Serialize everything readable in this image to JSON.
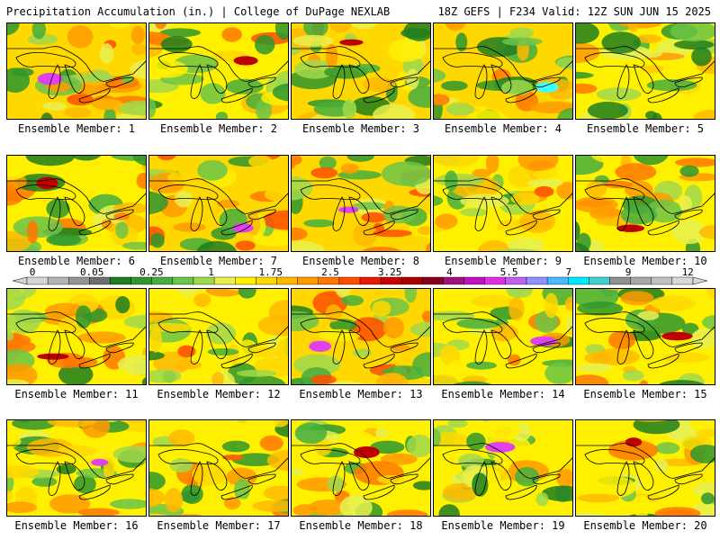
{
  "header": {
    "left": "Precipitation Accumulation (in.) | College of DuPage NEXLAB",
    "right": "18Z GEFS | F234 Valid: 12Z SUN JUN 15 2025"
  },
  "member_prefix": "Ensemble Member: ",
  "members": [
    {
      "n": 1,
      "text": "Ensemble Member: 1",
      "seed": 11,
      "level": 0.55,
      "peak": "magenta"
    },
    {
      "n": 2,
      "text": "Ensemble Member: 2",
      "seed": 22,
      "level": 0.45,
      "peak": "red"
    },
    {
      "n": 3,
      "text": "Ensemble Member: 3",
      "seed": 33,
      "level": 0.5,
      "peak": "red"
    },
    {
      "n": 4,
      "text": "Ensemble Member: 4",
      "seed": 44,
      "level": 0.6,
      "peak": "cyan"
    },
    {
      "n": 5,
      "text": "Ensemble Member: 5",
      "seed": 55,
      "level": 0.3,
      "peak": "yellow"
    },
    {
      "n": 6,
      "text": "Ensemble Member: 6",
      "seed": 66,
      "level": 0.4,
      "peak": "red"
    },
    {
      "n": 7,
      "text": "Ensemble Member: 7",
      "seed": 77,
      "level": 0.55,
      "peak": "magenta"
    },
    {
      "n": 8,
      "text": "Ensemble Member: 8",
      "seed": 88,
      "level": 0.55,
      "peak": "magenta"
    },
    {
      "n": 9,
      "text": "Ensemble Member: 9",
      "seed": 99,
      "level": 0.35,
      "peak": "orange"
    },
    {
      "n": 10,
      "text": "Ensemble Member: 10",
      "seed": 101,
      "level": 0.45,
      "peak": "red"
    },
    {
      "n": 11,
      "text": "Ensemble Member: 11",
      "seed": 111,
      "level": 0.4,
      "peak": "red"
    },
    {
      "n": 12,
      "text": "Ensemble Member: 12",
      "seed": 121,
      "level": 0.3,
      "peak": "orange"
    },
    {
      "n": 13,
      "text": "Ensemble Member: 13",
      "seed": 131,
      "level": 0.5,
      "peak": "magenta"
    },
    {
      "n": 14,
      "text": "Ensemble Member: 14",
      "seed": 141,
      "level": 0.35,
      "peak": "magenta"
    },
    {
      "n": 15,
      "text": "Ensemble Member: 15",
      "seed": 151,
      "level": 0.4,
      "peak": "red"
    },
    {
      "n": 16,
      "text": "Ensemble Member: 16",
      "seed": 161,
      "level": 0.4,
      "peak": "magenta"
    },
    {
      "n": 17,
      "text": "Ensemble Member: 17",
      "seed": 171,
      "level": 0.35,
      "peak": "orange"
    },
    {
      "n": 18,
      "text": "Ensemble Member: 18",
      "seed": 181,
      "level": 0.45,
      "peak": "red"
    },
    {
      "n": 19,
      "text": "Ensemble Member: 19",
      "seed": 191,
      "level": 0.3,
      "peak": "magenta"
    },
    {
      "n": 20,
      "text": "Ensemble Member: 20",
      "seed": 201,
      "level": 0.45,
      "peak": "red"
    }
  ],
  "colorbar": {
    "labels": [
      "0",
      "0.05",
      "0.25",
      "1",
      "1.75",
      "2.5",
      "3.25",
      "4",
      "5.5",
      "7",
      "9",
      "12"
    ],
    "colors": [
      "#d4d4d4",
      "#b4b4b4",
      "#949494",
      "#6e6e6e",
      "#1e7e1e",
      "#2e962e",
      "#46ae3e",
      "#6cc448",
      "#a0d84c",
      "#e8f050",
      "#fff000",
      "#ffd800",
      "#ffb800",
      "#ff9a00",
      "#ff7800",
      "#ff4e00",
      "#e81a00",
      "#c80000",
      "#a80000",
      "#880020",
      "#a01080",
      "#c010c0",
      "#e030e0",
      "#c060f0",
      "#9090ff",
      "#4ab8ff",
      "#00e8ff",
      "#40d0d0",
      "#909090",
      "#a8a8a8",
      "#c0c0c0",
      "#d8d8d8"
    ]
  }
}
